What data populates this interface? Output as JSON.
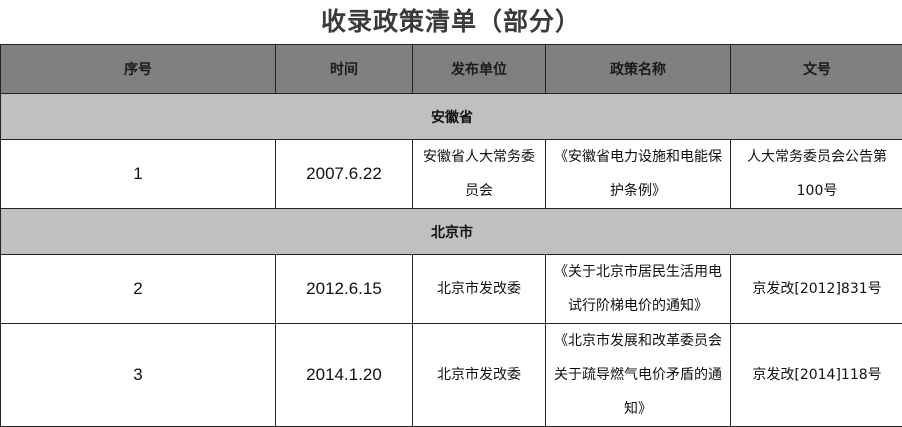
{
  "title": "收录政策清单（部分）",
  "columns": [
    "序号",
    "时间",
    "发布单位",
    "政策名称",
    "文号"
  ],
  "groups": [
    {
      "name": "安徽省",
      "rows": [
        {
          "no": "1",
          "date": "2007.6.22",
          "issuer": "安徽省人大常务委员会",
          "policy": "《安徽省电力设施和电能保护条例》",
          "doc_no": "人大常务委员会公告第100号"
        }
      ]
    },
    {
      "name": "北京市",
      "rows": [
        {
          "no": "2",
          "date": "2012.6.15",
          "issuer": "北京市发改委",
          "policy": "《关于北京市居民生活用电试行阶梯电价的通知》",
          "doc_no": "京发改[2012]831号"
        },
        {
          "no": "3",
          "date": "2014.1.20",
          "issuer": "北京市发改委",
          "policy": "《北京市发展和改革委员会关于疏导燃气电价矛盾的通知》",
          "doc_no": "京发改[2014]118号"
        }
      ]
    }
  ]
}
